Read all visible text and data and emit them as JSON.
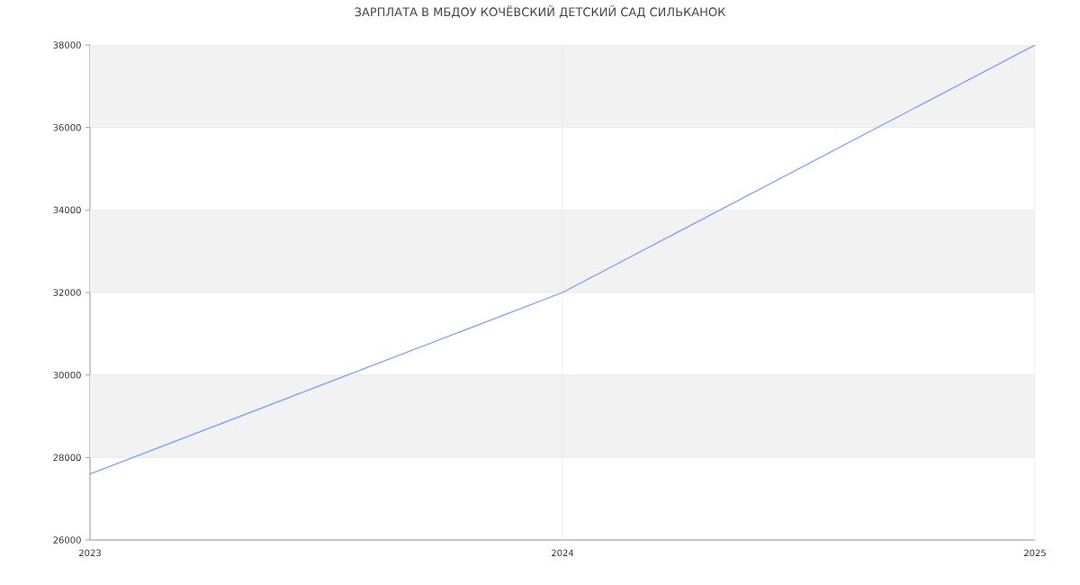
{
  "chart_data": {
    "type": "line",
    "title": "ЗАРПЛАТА В МБДОУ КОЧЁВСКИЙ ДЕТСКИЙ САД СИЛЬКАНОК",
    "categories": [
      "2023",
      "2024",
      "2025"
    ],
    "values": [
      27600,
      32000,
      38000
    ],
    "color": "#779ef5",
    "ylim": [
      26000,
      38000
    ],
    "yticks": [
      26000,
      28000,
      30000,
      32000,
      34000,
      36000,
      38000
    ],
    "grid": true,
    "bands": [
      {
        "axis": "y",
        "from": 28000,
        "to": 30000,
        "color": "#f2f2f2"
      },
      {
        "axis": "y",
        "from": 32000,
        "to": 34000,
        "color": "#f2f2f2"
      },
      {
        "axis": "y",
        "from": 36000,
        "to": 38000,
        "color": "#f2f2f2"
      }
    ]
  }
}
